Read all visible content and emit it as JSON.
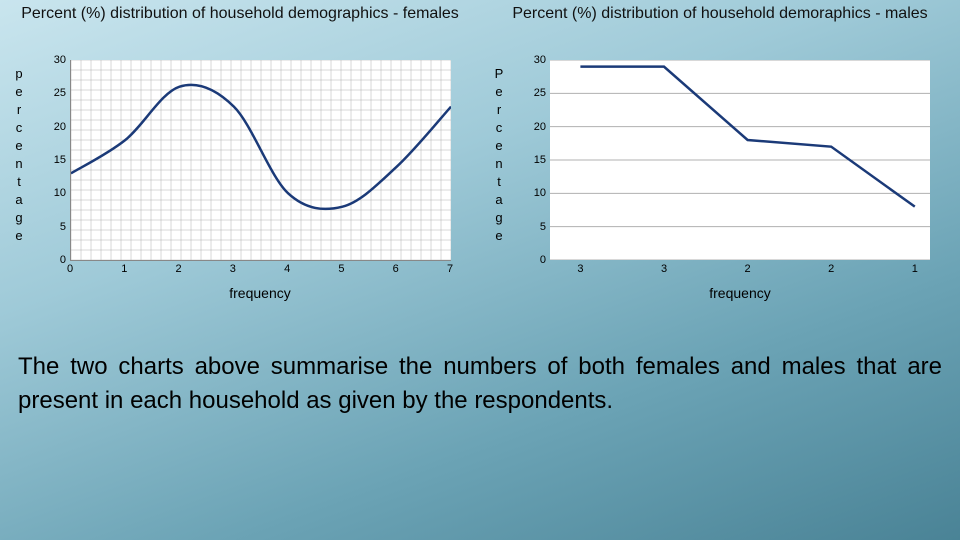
{
  "left_chart": {
    "type": "line",
    "title": "Percent (%) distribution of household demographics - females",
    "ylabel": "percentage",
    "xlabel": "frequency",
    "ylim": [
      0,
      30
    ],
    "ytick_step": 5,
    "xticks": [
      0,
      1,
      2,
      3,
      4,
      5,
      6,
      7
    ],
    "x_values": [
      0,
      1,
      2,
      3,
      4,
      5,
      6,
      7
    ],
    "y_values": [
      13,
      18,
      26,
      23,
      10,
      8,
      14,
      23
    ],
    "line_color": "#1b3a78",
    "line_width": 2.5,
    "grid_color": "#b0b0b0",
    "grid": "dense",
    "background_color": "#ffffff",
    "title_fontsize": 16,
    "label_fontsize": 14,
    "tick_fontsize": 11
  },
  "right_chart": {
    "type": "line",
    "title": "Percent (%) distribution of household demoraphics - males",
    "ylabel": "Percentage",
    "xlabel": "frequency",
    "ylim": [
      0,
      30
    ],
    "ytick_step": 5,
    "x_categories": [
      "3",
      "3",
      "2",
      "2",
      "1"
    ],
    "y_values": [
      29,
      29,
      18,
      17,
      8
    ],
    "line_color": "#1b3a78",
    "line_width": 2.5,
    "grid_color": "#b0b0b0",
    "grid": "horizontal",
    "background_color": "#ffffff",
    "title_fontsize": 16,
    "label_fontsize": 14,
    "tick_fontsize": 11
  },
  "caption": "The two charts above summarise the numbers of both females and males that are present in each household as given by the respondents."
}
